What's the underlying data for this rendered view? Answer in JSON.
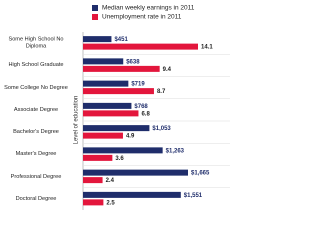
{
  "chart_data": {
    "type": "bar",
    "orientation": "horizontal",
    "y_label": "Level of education",
    "categories": [
      "Some High School No Diploma",
      "High School Graduate",
      "Some College No Degree",
      "Associate Degree",
      "Bachelor's Degree",
      "Master's Degree",
      "Professional Degree",
      "Doctoral Degree"
    ],
    "series": [
      {
        "name": "Median weekly earnings in 2011",
        "color": "#1f2d6b",
        "values": [
          451,
          638,
          719,
          768,
          1053,
          1263,
          1665,
          1551
        ],
        "value_labels": [
          "$451",
          "$638",
          "$719",
          "$768",
          "$1,053",
          "$1,263",
          "$1,665",
          "$1,551"
        ]
      },
      {
        "name": "Unemployment rate in 2011",
        "color": "#e3163c",
        "values": [
          14.1,
          9.4,
          8.7,
          6.8,
          4.9,
          3.6,
          2.4,
          2.5
        ]
      }
    ],
    "legend": "top",
    "grid": true
  }
}
